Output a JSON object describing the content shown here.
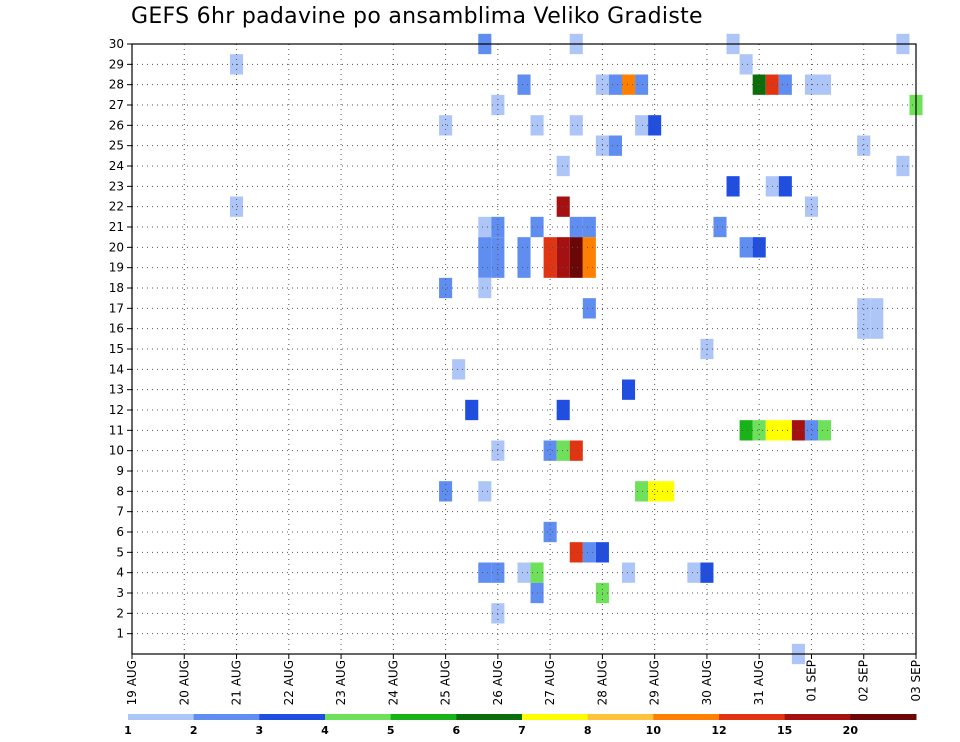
{
  "chart_data": {
    "type": "heatmap",
    "title": "GEFS 6hr padavine po ansamblima Veliko Gradiste",
    "x_tick_labels": [
      "19 AUG",
      "20 AUG",
      "21 AUG",
      "22 AUG",
      "23 AUG",
      "24 AUG",
      "25 AUG",
      "26 AUG",
      "27 AUG",
      "28 AUG",
      "29 AUG",
      "30 AUG",
      "31 AUG",
      "01 SEP",
      "02 SEP",
      "03 SEP"
    ],
    "x_range_days": [
      0,
      15
    ],
    "y_tick_labels": [
      "1",
      "2",
      "3",
      "4",
      "5",
      "6",
      "7",
      "8",
      "9",
      "10",
      "11",
      "12",
      "13",
      "14",
      "15",
      "16",
      "17",
      "18",
      "19",
      "20",
      "21",
      "22",
      "23",
      "24",
      "25",
      "26",
      "27",
      "28",
      "29",
      "30"
    ],
    "y_range": [
      0,
      30
    ],
    "grid": true,
    "grid_style": "dotted",
    "x_units": "day offset from 19 AUG, 6-hour steps",
    "colorbar": {
      "boundaries": [
        "1",
        "2",
        "3",
        "4",
        "5",
        "6",
        "7",
        "8",
        "10",
        "12",
        "15",
        "20"
      ],
      "colors": [
        "#aec6f7",
        "#5f8df0",
        "#1f4ee0",
        "#6fe05a",
        "#19b319",
        "#0b6e0b",
        "#ffff00",
        "#ffc23b",
        "#ff7f00",
        "#e03412",
        "#a51010",
        "#6b0707"
      ]
    },
    "cells": [
      {
        "member": 30,
        "day": 6.75,
        "cls": 2
      },
      {
        "member": 30,
        "day": 8.5,
        "cls": 1
      },
      {
        "member": 30,
        "day": 11.5,
        "cls": 1
      },
      {
        "member": 30,
        "day": 14.75,
        "cls": 1
      },
      {
        "member": 29,
        "day": 2.0,
        "cls": 1
      },
      {
        "member": 29,
        "day": 11.75,
        "cls": 1
      },
      {
        "member": 28,
        "day": 7.5,
        "cls": 2
      },
      {
        "member": 28,
        "day": 9.0,
        "cls": 1
      },
      {
        "member": 28,
        "day": 9.25,
        "cls": 2
      },
      {
        "member": 28,
        "day": 9.5,
        "cls": 9
      },
      {
        "member": 28,
        "day": 9.75,
        "cls": 2
      },
      {
        "member": 28,
        "day": 12.0,
        "cls": 6
      },
      {
        "member": 28,
        "day": 12.25,
        "cls": 10
      },
      {
        "member": 28,
        "day": 12.5,
        "cls": 2
      },
      {
        "member": 28,
        "day": 13.0,
        "cls": 1
      },
      {
        "member": 28,
        "day": 13.25,
        "cls": 1
      },
      {
        "member": 27,
        "day": 7.0,
        "cls": 1
      },
      {
        "member": 27,
        "day": 15.0,
        "cls": 4
      },
      {
        "member": 26,
        "day": 6.0,
        "cls": 1
      },
      {
        "member": 26,
        "day": 7.75,
        "cls": 1
      },
      {
        "member": 26,
        "day": 8.5,
        "cls": 1
      },
      {
        "member": 26,
        "day": 9.75,
        "cls": 1
      },
      {
        "member": 26,
        "day": 10.0,
        "cls": 3
      },
      {
        "member": 25,
        "day": 9.0,
        "cls": 1
      },
      {
        "member": 25,
        "day": 9.25,
        "cls": 2
      },
      {
        "member": 25,
        "day": 14.0,
        "cls": 1
      },
      {
        "member": 24,
        "day": 8.25,
        "cls": 1
      },
      {
        "member": 24,
        "day": 14.75,
        "cls": 1
      },
      {
        "member": 23,
        "day": 11.5,
        "cls": 3
      },
      {
        "member": 23,
        "day": 12.25,
        "cls": 1
      },
      {
        "member": 23,
        "day": 12.5,
        "cls": 3
      },
      {
        "member": 22,
        "day": 2.0,
        "cls": 1
      },
      {
        "member": 22,
        "day": 8.25,
        "cls": 11
      },
      {
        "member": 22,
        "day": 13.0,
        "cls": 1
      },
      {
        "member": 21,
        "day": 6.75,
        "cls": 1
      },
      {
        "member": 21,
        "day": 7.0,
        "cls": 2
      },
      {
        "member": 21,
        "day": 7.75,
        "cls": 2
      },
      {
        "member": 21,
        "day": 8.5,
        "cls": 2
      },
      {
        "member": 21,
        "day": 8.75,
        "cls": 2
      },
      {
        "member": 21,
        "day": 11.25,
        "cls": 2
      },
      {
        "member": 20,
        "day": 6.75,
        "cls": 2
      },
      {
        "member": 20,
        "day": 7.0,
        "cls": 2
      },
      {
        "member": 20,
        "day": 7.5,
        "cls": 2
      },
      {
        "member": 20,
        "day": 8.0,
        "cls": 10
      },
      {
        "member": 20,
        "day": 8.25,
        "cls": 11
      },
      {
        "member": 20,
        "day": 8.5,
        "cls": 12
      },
      {
        "member": 20,
        "day": 8.75,
        "cls": 9
      },
      {
        "member": 20,
        "day": 11.75,
        "cls": 2
      },
      {
        "member": 20,
        "day": 12.0,
        "cls": 3
      },
      {
        "member": 19,
        "day": 6.75,
        "cls": 2
      },
      {
        "member": 19,
        "day": 7.0,
        "cls": 2
      },
      {
        "member": 19,
        "day": 7.5,
        "cls": 2
      },
      {
        "member": 19,
        "day": 8.0,
        "cls": 10
      },
      {
        "member": 19,
        "day": 8.25,
        "cls": 11
      },
      {
        "member": 19,
        "day": 8.5,
        "cls": 12
      },
      {
        "member": 19,
        "day": 8.75,
        "cls": 9
      },
      {
        "member": 18,
        "day": 6.0,
        "cls": 2
      },
      {
        "member": 18,
        "day": 6.75,
        "cls": 1
      },
      {
        "member": 17,
        "day": 8.75,
        "cls": 2
      },
      {
        "member": 17,
        "day": 14.0,
        "cls": 1
      },
      {
        "member": 17,
        "day": 14.25,
        "cls": 1
      },
      {
        "member": 16,
        "day": 14.0,
        "cls": 1
      },
      {
        "member": 16,
        "day": 14.25,
        "cls": 1
      },
      {
        "member": 15,
        "day": 11.0,
        "cls": 1
      },
      {
        "member": 14,
        "day": 6.25,
        "cls": 1
      },
      {
        "member": 13,
        "day": 9.5,
        "cls": 3
      },
      {
        "member": 12,
        "day": 6.5,
        "cls": 3
      },
      {
        "member": 12,
        "day": 8.25,
        "cls": 3
      },
      {
        "member": 11,
        "day": 11.75,
        "cls": 5
      },
      {
        "member": 11,
        "day": 12.0,
        "cls": 4
      },
      {
        "member": 11,
        "day": 12.25,
        "cls": 7
      },
      {
        "member": 11,
        "day": 12.5,
        "cls": 7
      },
      {
        "member": 11,
        "day": 12.75,
        "cls": 11
      },
      {
        "member": 11,
        "day": 13.0,
        "cls": 2
      },
      {
        "member": 11,
        "day": 13.25,
        "cls": 4
      },
      {
        "member": 10,
        "day": 7.0,
        "cls": 1
      },
      {
        "member": 10,
        "day": 8.0,
        "cls": 2
      },
      {
        "member": 10,
        "day": 8.25,
        "cls": 4
      },
      {
        "member": 10,
        "day": 8.5,
        "cls": 10
      },
      {
        "member": 8,
        "day": 6.0,
        "cls": 2
      },
      {
        "member": 8,
        "day": 6.75,
        "cls": 1
      },
      {
        "member": 8,
        "day": 9.75,
        "cls": 4
      },
      {
        "member": 8,
        "day": 10.0,
        "cls": 7
      },
      {
        "member": 8,
        "day": 10.25,
        "cls": 7
      },
      {
        "member": 6,
        "day": 8.0,
        "cls": 2
      },
      {
        "member": 5,
        "day": 8.5,
        "cls": 10
      },
      {
        "member": 5,
        "day": 8.75,
        "cls": 2
      },
      {
        "member": 5,
        "day": 9.0,
        "cls": 3
      },
      {
        "member": 4,
        "day": 6.75,
        "cls": 2
      },
      {
        "member": 4,
        "day": 7.0,
        "cls": 2
      },
      {
        "member": 4,
        "day": 7.5,
        "cls": 1
      },
      {
        "member": 4,
        "day": 7.75,
        "cls": 4
      },
      {
        "member": 4,
        "day": 9.5,
        "cls": 1
      },
      {
        "member": 4,
        "day": 10.75,
        "cls": 1
      },
      {
        "member": 4,
        "day": 11.0,
        "cls": 3
      },
      {
        "member": 3,
        "day": 7.75,
        "cls": 2
      },
      {
        "member": 3,
        "day": 9.0,
        "cls": 4
      },
      {
        "member": 2,
        "day": 7.0,
        "cls": 1
      },
      {
        "member": 0,
        "day": 12.75,
        "cls": 1
      }
    ]
  }
}
